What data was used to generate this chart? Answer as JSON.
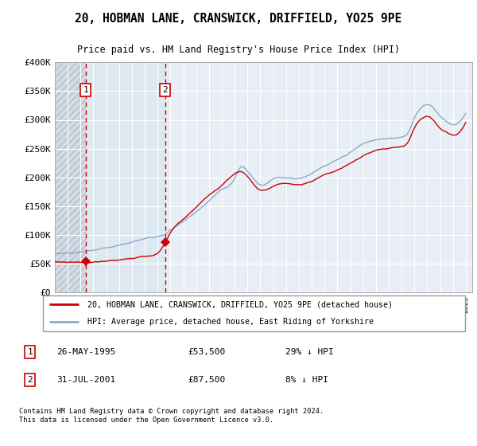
{
  "title": "20, HOBMAN LANE, CRANSWICK, DRIFFIELD, YO25 9PE",
  "subtitle": "Price paid vs. HM Land Registry's House Price Index (HPI)",
  "legend_line1": "20, HOBMAN LANE, CRANSWICK, DRIFFIELD, YO25 9PE (detached house)",
  "legend_line2": "HPI: Average price, detached house, East Riding of Yorkshire",
  "footnote": "Contains HM Land Registry data © Crown copyright and database right 2024.\nThis data is licensed under the Open Government Licence v3.0.",
  "sale1_date": "26-MAY-1995",
  "sale1_price": "£53,500",
  "sale1_hpi": "29% ↓ HPI",
  "sale2_date": "31-JUL-2001",
  "sale2_price": "£87,500",
  "sale2_hpi": "8% ↓ HPI",
  "sale_line_color": "#cc0000",
  "hpi_line_color": "#88aacc",
  "plot_bg_color": "#e8eef5",
  "hatch_bg_color": "#d0dce8",
  "between_bg_color": "#dde8f0",
  "ylim": [
    0,
    400000
  ],
  "yticks": [
    0,
    50000,
    100000,
    150000,
    200000,
    250000,
    300000,
    350000,
    400000
  ],
  "sale1_x": 1995.39,
  "sale1_y": 53500,
  "sale2_x": 2001.58,
  "sale2_y": 87500,
  "xmin": 1993,
  "xmax": 2025.5
}
